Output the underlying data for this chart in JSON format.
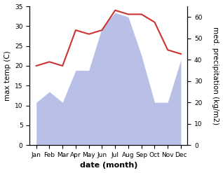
{
  "months": [
    "Jan",
    "Feb",
    "Mar",
    "Apr",
    "May",
    "Jun",
    "Jul",
    "Aug",
    "Sep",
    "Oct",
    "Nov",
    "Dec"
  ],
  "temperature": [
    20,
    21,
    20,
    29,
    28,
    29,
    34,
    33,
    33,
    31,
    24,
    23
  ],
  "precipitation": [
    20,
    25,
    20,
    35,
    35,
    55,
    62,
    60,
    42,
    20,
    20,
    40
  ],
  "temp_color": "#cc3333",
  "precip_fill_color": "#b8c0e8",
  "temp_ylim": [
    0,
    35
  ],
  "precip_ylim": [
    0,
    65
  ],
  "temp_yticks": [
    0,
    5,
    10,
    15,
    20,
    25,
    30,
    35
  ],
  "precip_yticks": [
    0,
    10,
    20,
    30,
    40,
    50,
    60
  ],
  "xlabel": "date (month)",
  "ylabel_left": "max temp (C)",
  "ylabel_right": "med. precipitation (kg/m2)",
  "axis_fontsize": 7.5,
  "tick_fontsize": 6.5,
  "xlabel_fontsize": 8,
  "linewidth": 1.5
}
